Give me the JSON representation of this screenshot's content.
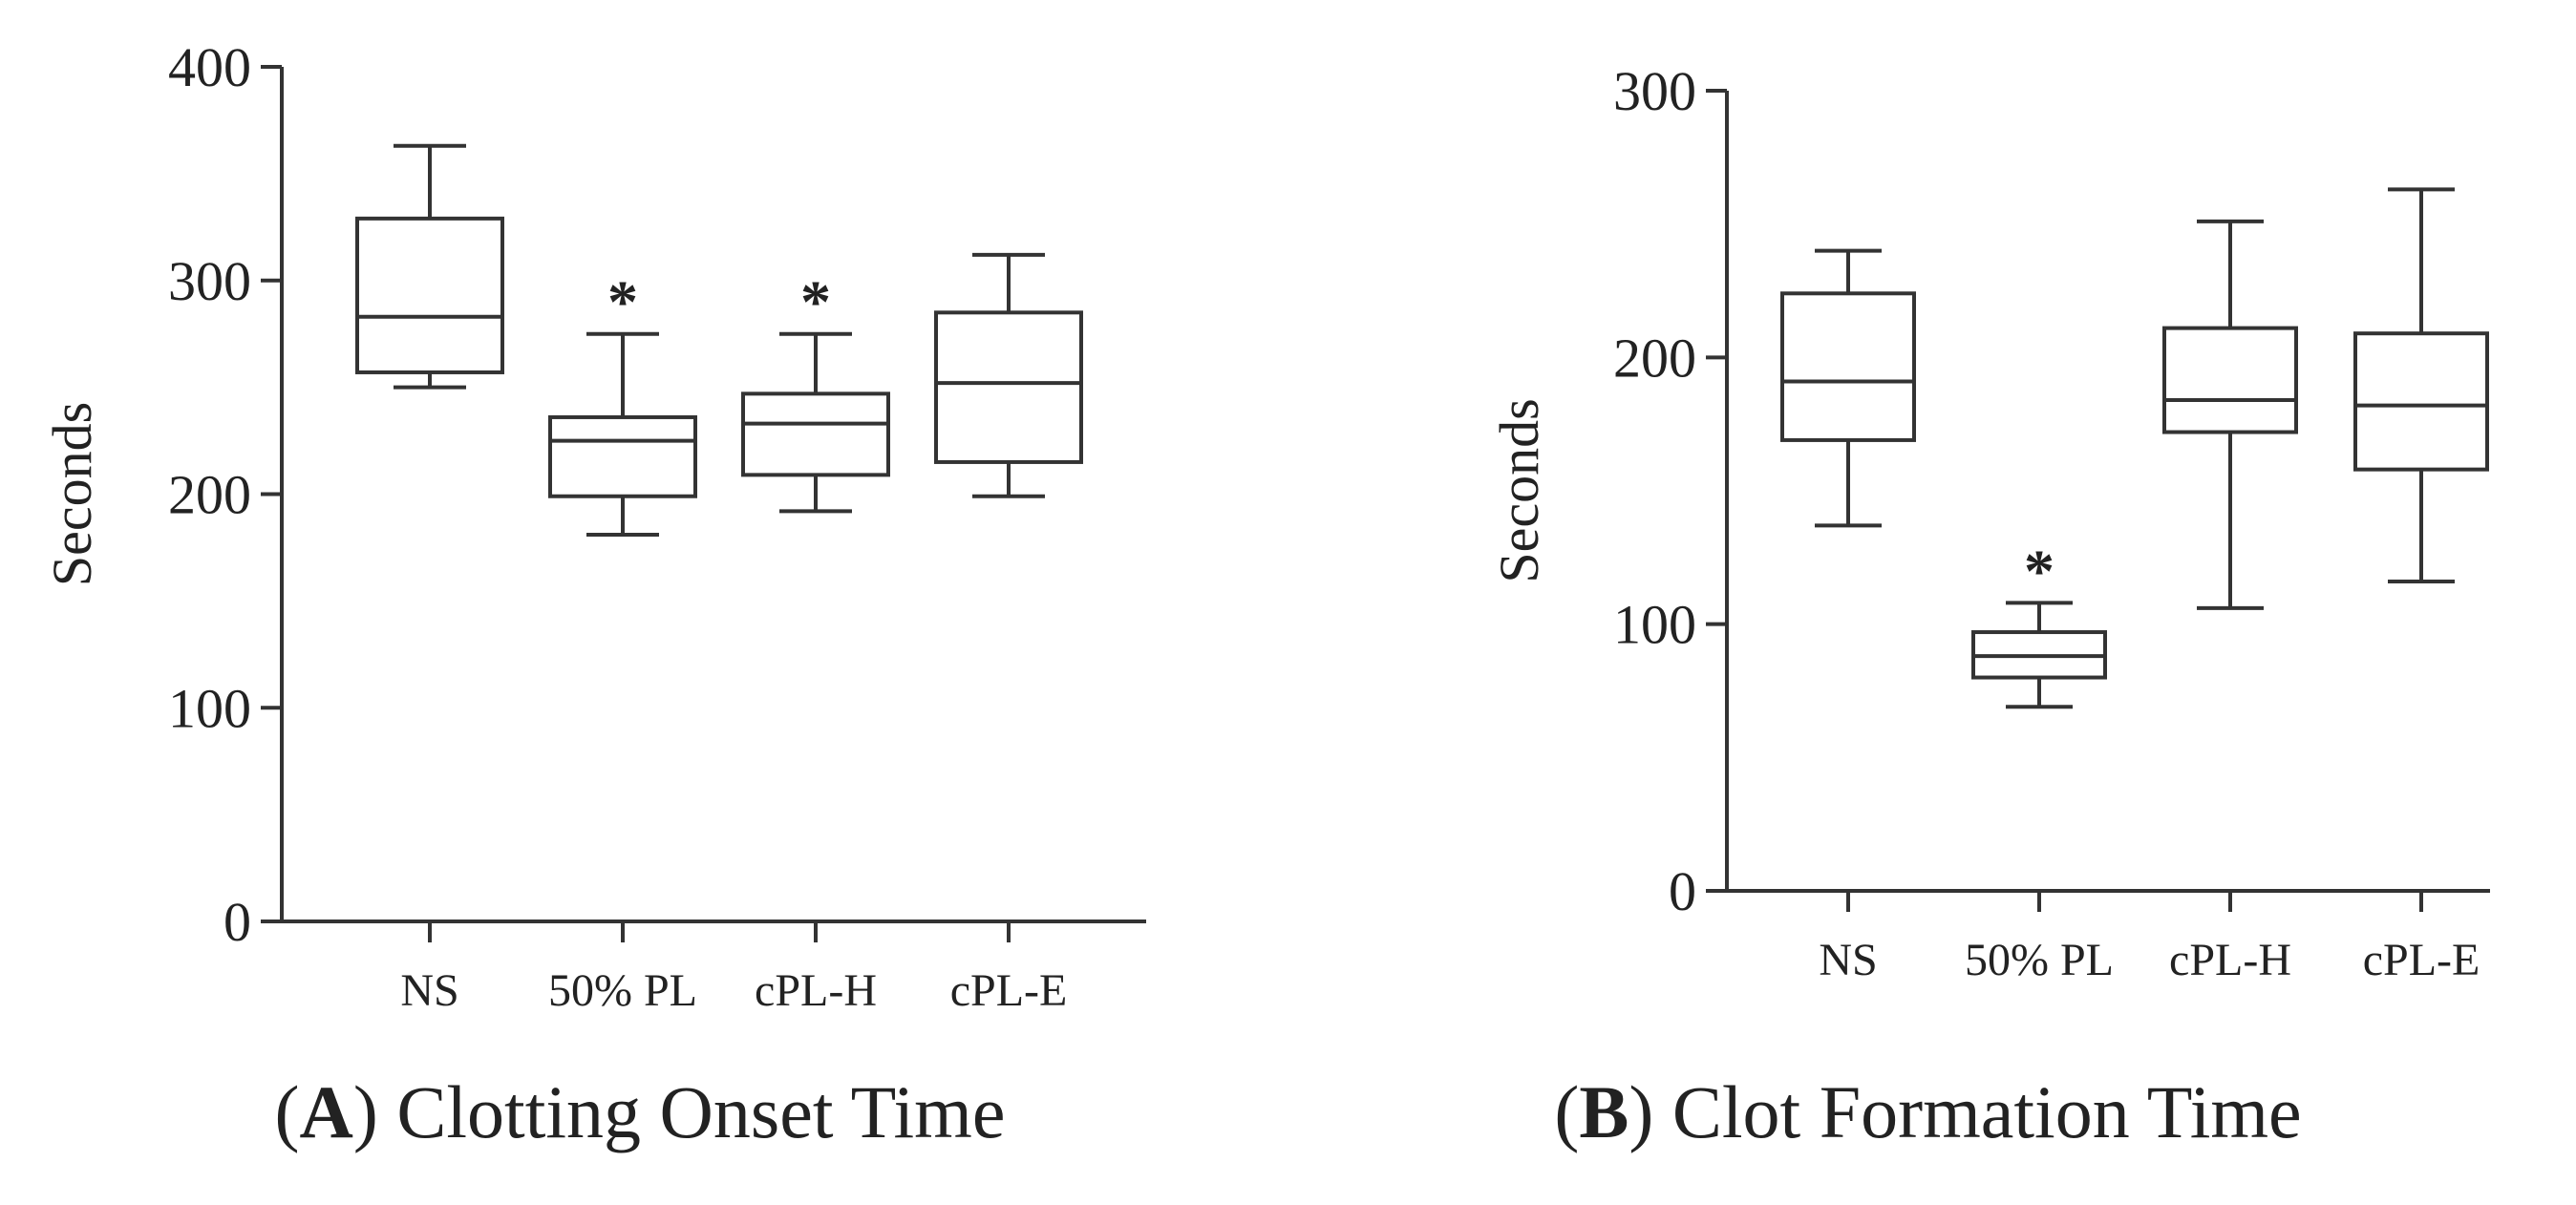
{
  "chart_data": [
    {
      "type": "box",
      "panel_letter": "A",
      "title": "Clotting Onset Time",
      "ylabel": "Seconds",
      "ylim": [
        0,
        400
      ],
      "yticks": [
        0,
        100,
        200,
        300,
        400
      ],
      "categories": [
        "NS",
        "50% PL",
        "cPL-H",
        "cPL-E"
      ],
      "boxes": [
        {
          "category": "NS",
          "min": 250,
          "q1": 257,
          "median": 283,
          "q3": 329,
          "max": 363,
          "marker": ""
        },
        {
          "category": "50% PL",
          "min": 181,
          "q1": 199,
          "median": 225,
          "q3": 236,
          "max": 275,
          "marker": "*"
        },
        {
          "category": "cPL-H",
          "min": 192,
          "q1": 209,
          "median": 233,
          "q3": 247,
          "max": 275,
          "marker": "*"
        },
        {
          "category": "cPL-E",
          "min": 199,
          "q1": 215,
          "median": 252,
          "q3": 285,
          "max": 312,
          "marker": ""
        }
      ],
      "grid": false,
      "legend": "none"
    },
    {
      "type": "box",
      "panel_letter": "B",
      "title": "Clot Formation Time",
      "ylabel": "Seconds",
      "ylim": [
        0,
        300
      ],
      "yticks": [
        0,
        100,
        200,
        300
      ],
      "categories": [
        "NS",
        "50% PL",
        "cPL-H",
        "cPL-E"
      ],
      "boxes": [
        {
          "category": "NS",
          "min": 137,
          "q1": 169,
          "median": 191,
          "q3": 224,
          "max": 240,
          "marker": ""
        },
        {
          "category": "50% PL",
          "min": 69,
          "q1": 80,
          "median": 88,
          "q3": 97,
          "max": 108,
          "marker": "*"
        },
        {
          "category": "cPL-H",
          "min": 106,
          "q1": 172,
          "median": 184,
          "q3": 211,
          "max": 251,
          "marker": ""
        },
        {
          "category": "cPL-E",
          "min": 116,
          "q1": 158,
          "median": 182,
          "q3": 209,
          "max": 263,
          "marker": ""
        }
      ],
      "grid": false,
      "legend": "none"
    }
  ]
}
